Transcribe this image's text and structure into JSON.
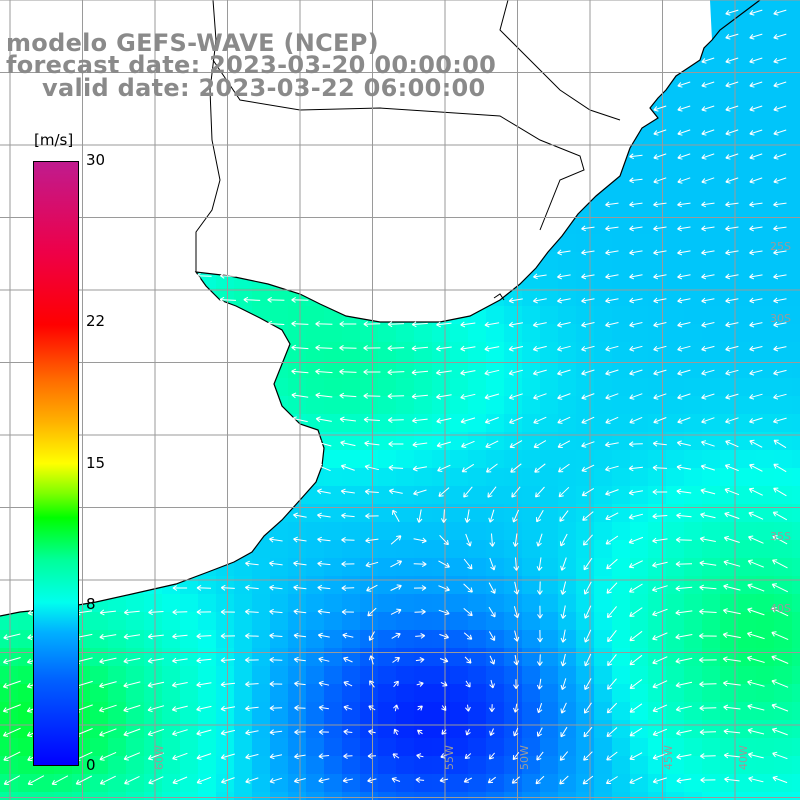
{
  "title": {
    "line1": "modelo GEFS-WAVE (NCEP)",
    "line2": "forecast date: 2023-03-20 00:00:00",
    "line3": "valid date: 2023-03-22 06:00:00"
  },
  "colorbar": {
    "unit": "[m/s]",
    "min": 0,
    "max": 30,
    "tick_values": [
      0,
      8,
      15,
      22,
      30
    ],
    "tick_labels": [
      "0",
      "8",
      "15",
      "22",
      "30"
    ]
  },
  "map": {
    "lon_labels": [
      "60W",
      "55W",
      "50W",
      "45W",
      "40W"
    ],
    "lat_labels": [
      "25S",
      "30S",
      "35S",
      "40S"
    ],
    "land_color": "#ffffff",
    "arrow_color": "#ffffff",
    "grid_color": "#9a9a9a"
  }
}
